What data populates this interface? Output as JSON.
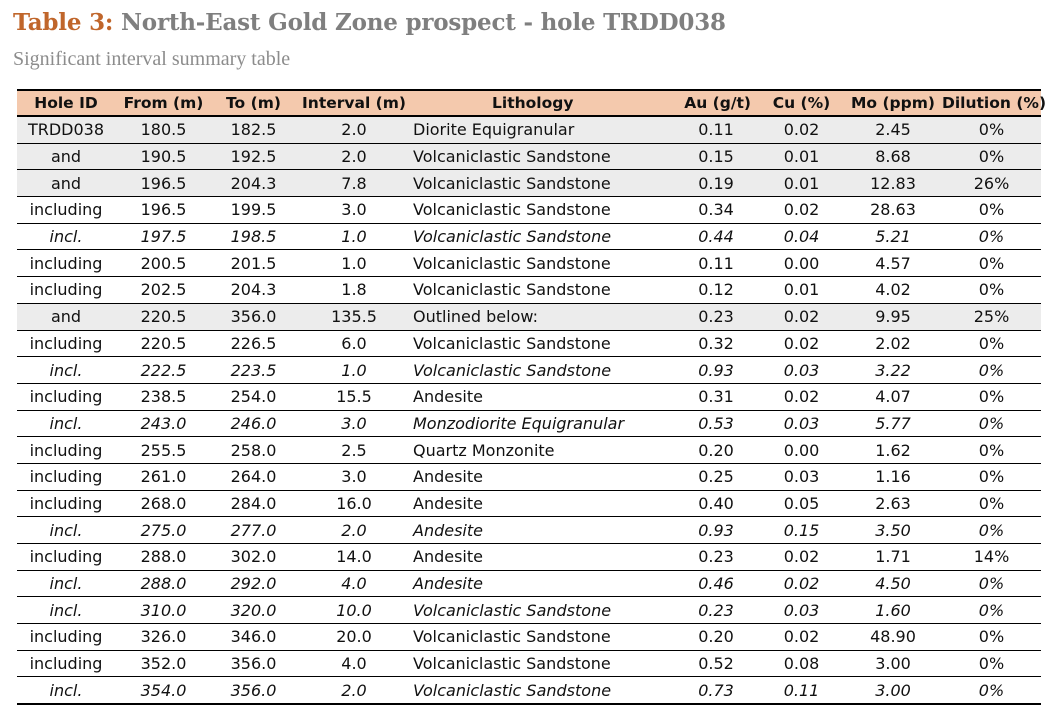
{
  "header": {
    "title_label": "Table 3:",
    "title_text": " North-East Gold Zone prospect - hole TRDD038",
    "subtitle": "Significant interval summary table"
  },
  "table": {
    "columns": [
      "Hole ID",
      "From (m)",
      "To (m)",
      "Interval (m)",
      "Lithology",
      "Au (g/t)",
      "Cu (%)",
      "Mo (ppm)",
      "Dilution (%)"
    ],
    "rows": [
      {
        "hole": "TRDD038",
        "from": "180.5",
        "to": "182.5",
        "interval": "2.0",
        "lith": "Diorite Equigranular",
        "au": "0.11",
        "cu": "0.02",
        "mo": "2.45",
        "dil": "0%",
        "shaded": true,
        "italic": false
      },
      {
        "hole": "and",
        "from": "190.5",
        "to": "192.5",
        "interval": "2.0",
        "lith": "Volcaniclastic Sandstone",
        "au": "0.15",
        "cu": "0.01",
        "mo": "8.68",
        "dil": "0%",
        "shaded": true,
        "italic": false
      },
      {
        "hole": "and",
        "from": "196.5",
        "to": "204.3",
        "interval": "7.8",
        "lith": "Volcaniclastic Sandstone",
        "au": "0.19",
        "cu": "0.01",
        "mo": "12.83",
        "dil": "26%",
        "shaded": true,
        "italic": false
      },
      {
        "hole": "including",
        "from": "196.5",
        "to": "199.5",
        "interval": "3.0",
        "lith": "Volcaniclastic Sandstone",
        "au": "0.34",
        "cu": "0.02",
        "mo": "28.63",
        "dil": "0%",
        "shaded": false,
        "italic": false
      },
      {
        "hole": "incl.",
        "from": "197.5",
        "to": "198.5",
        "interval": "1.0",
        "lith": "Volcaniclastic Sandstone",
        "au": "0.44",
        "cu": "0.04",
        "mo": "5.21",
        "dil": "0%",
        "shaded": false,
        "italic": true
      },
      {
        "hole": "including",
        "from": "200.5",
        "to": "201.5",
        "interval": "1.0",
        "lith": "Volcaniclastic Sandstone",
        "au": "0.11",
        "cu": "0.00",
        "mo": "4.57",
        "dil": "0%",
        "shaded": false,
        "italic": false
      },
      {
        "hole": "including",
        "from": "202.5",
        "to": "204.3",
        "interval": "1.8",
        "lith": "Volcaniclastic Sandstone",
        "au": "0.12",
        "cu": "0.01",
        "mo": "4.02",
        "dil": "0%",
        "shaded": false,
        "italic": false
      },
      {
        "hole": "and",
        "from": "220.5",
        "to": "356.0",
        "interval": "135.5",
        "lith": "Outlined below:",
        "au": "0.23",
        "cu": "0.02",
        "mo": "9.95",
        "dil": "25%",
        "shaded": true,
        "italic": false
      },
      {
        "hole": "including",
        "from": "220.5",
        "to": "226.5",
        "interval": "6.0",
        "lith": "Volcaniclastic Sandstone",
        "au": "0.32",
        "cu": "0.02",
        "mo": "2.02",
        "dil": "0%",
        "shaded": false,
        "italic": false
      },
      {
        "hole": "incl.",
        "from": "222.5",
        "to": "223.5",
        "interval": "1.0",
        "lith": "Volcaniclastic Sandstone",
        "au": "0.93",
        "cu": "0.03",
        "mo": "3.22",
        "dil": "0%",
        "shaded": false,
        "italic": true
      },
      {
        "hole": "including",
        "from": "238.5",
        "to": "254.0",
        "interval": "15.5",
        "lith": "Andesite",
        "au": "0.31",
        "cu": "0.02",
        "mo": "4.07",
        "dil": "0%",
        "shaded": false,
        "italic": false
      },
      {
        "hole": "incl.",
        "from": "243.0",
        "to": "246.0",
        "interval": "3.0",
        "lith": "Monzodiorite Equigranular",
        "au": "0.53",
        "cu": "0.03",
        "mo": "5.77",
        "dil": "0%",
        "shaded": false,
        "italic": true
      },
      {
        "hole": "including",
        "from": "255.5",
        "to": "258.0",
        "interval": "2.5",
        "lith": "Quartz Monzonite",
        "au": "0.20",
        "cu": "0.00",
        "mo": "1.62",
        "dil": "0%",
        "shaded": false,
        "italic": false
      },
      {
        "hole": "including",
        "from": "261.0",
        "to": "264.0",
        "interval": "3.0",
        "lith": "Andesite",
        "au": "0.25",
        "cu": "0.03",
        "mo": "1.16",
        "dil": "0%",
        "shaded": false,
        "italic": false
      },
      {
        "hole": "including",
        "from": "268.0",
        "to": "284.0",
        "interval": "16.0",
        "lith": "Andesite",
        "au": "0.40",
        "cu": "0.05",
        "mo": "2.63",
        "dil": "0%",
        "shaded": false,
        "italic": false
      },
      {
        "hole": "incl.",
        "from": "275.0",
        "to": "277.0",
        "interval": "2.0",
        "lith": "Andesite",
        "au": "0.93",
        "cu": "0.15",
        "mo": "3.50",
        "dil": "0%",
        "shaded": false,
        "italic": true
      },
      {
        "hole": "including",
        "from": "288.0",
        "to": "302.0",
        "interval": "14.0",
        "lith": "Andesite",
        "au": "0.23",
        "cu": "0.02",
        "mo": "1.71",
        "dil": "14%",
        "shaded": false,
        "italic": false
      },
      {
        "hole": "incl.",
        "from": "288.0",
        "to": "292.0",
        "interval": "4.0",
        "lith": "Andesite",
        "au": "0.46",
        "cu": "0.02",
        "mo": "4.50",
        "dil": "0%",
        "shaded": false,
        "italic": true
      },
      {
        "hole": "incl.",
        "from": "310.0",
        "to": "320.0",
        "interval": "10.0",
        "lith": "Volcaniclastic Sandstone",
        "au": "0.23",
        "cu": "0.03",
        "mo": "1.60",
        "dil": "0%",
        "shaded": false,
        "italic": true
      },
      {
        "hole": "including",
        "from": "326.0",
        "to": "346.0",
        "interval": "20.0",
        "lith": "Volcaniclastic Sandstone",
        "au": "0.20",
        "cu": "0.02",
        "mo": "48.90",
        "dil": "0%",
        "shaded": false,
        "italic": false
      },
      {
        "hole": "including",
        "from": "352.0",
        "to": "356.0",
        "interval": "4.0",
        "lith": "Volcaniclastic Sandstone",
        "au": "0.52",
        "cu": "0.08",
        "mo": "3.00",
        "dil": "0%",
        "shaded": false,
        "italic": false
      },
      {
        "hole": "incl.",
        "from": "354.0",
        "to": "356.0",
        "interval": "2.0",
        "lith": "Volcaniclastic Sandstone",
        "au": "0.73",
        "cu": "0.11",
        "mo": "3.00",
        "dil": "0%",
        "shaded": false,
        "italic": true
      }
    ]
  }
}
